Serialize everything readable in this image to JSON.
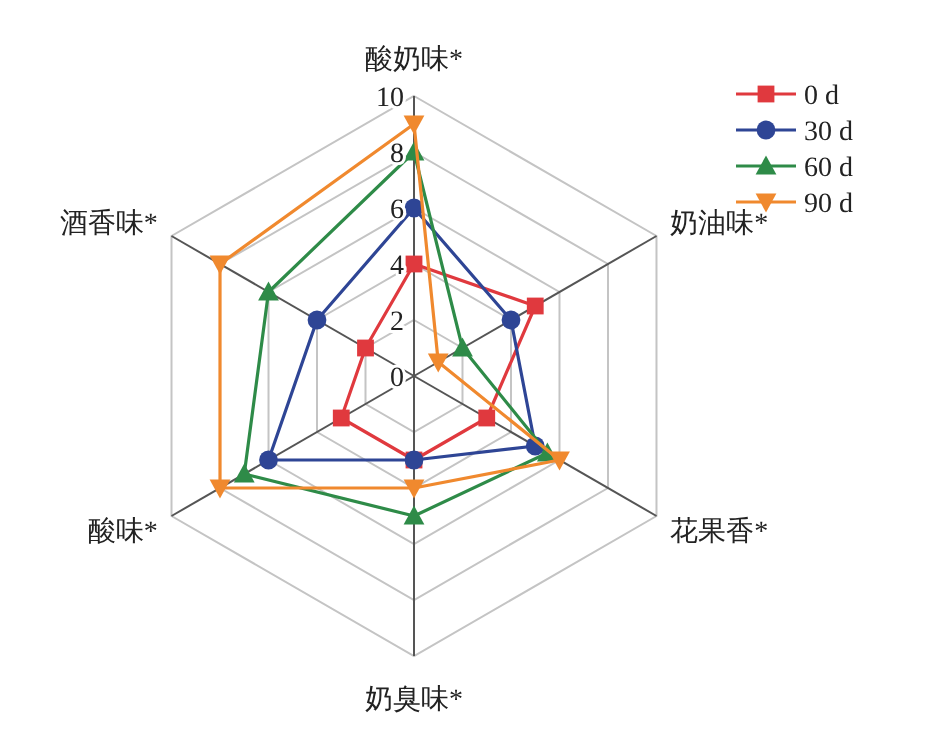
{
  "chart_data": {
    "type": "radar",
    "categories": [
      "酸奶味*",
      "奶油味*",
      "花果香*",
      "奶臭味*",
      "酸味*",
      "酒香味*"
    ],
    "ylim": [
      0,
      10
    ],
    "yticks": [
      0,
      2,
      4,
      6,
      8,
      10
    ],
    "grid": true,
    "legend": "top right",
    "line_style": "solid",
    "series": [
      {
        "name": "0 d",
        "color": "#e0393e",
        "marker": "square",
        "values": [
          4,
          5,
          3,
          3,
          3,
          2
        ]
      },
      {
        "name": "30 d",
        "color": "#2e4595",
        "marker": "circle",
        "values": [
          6,
          4,
          5,
          3,
          6,
          4
        ]
      },
      {
        "name": "60 d",
        "color": "#2e8b48",
        "marker": "triangle",
        "values": [
          8,
          2,
          5.5,
          5,
          7,
          6
        ]
      },
      {
        "name": "90 d",
        "color": "#f0892e",
        "marker": "triangle-down",
        "values": [
          9,
          1,
          6,
          4,
          8,
          8
        ]
      }
    ]
  }
}
